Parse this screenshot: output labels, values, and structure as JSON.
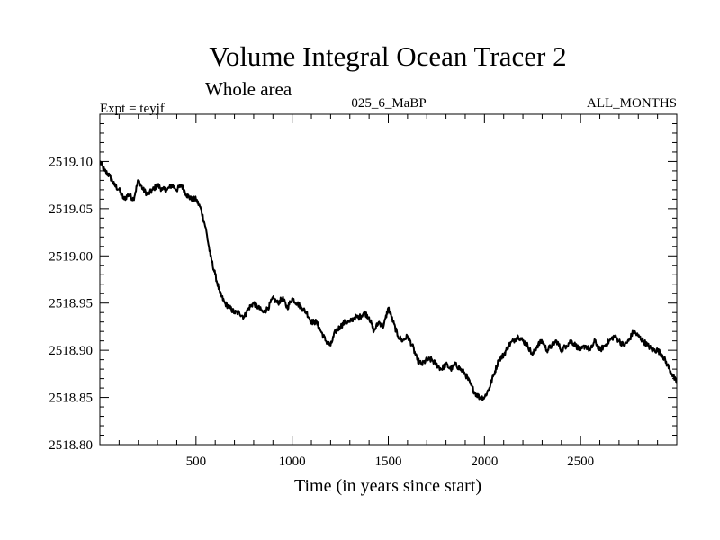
{
  "chart_data": {
    "type": "line",
    "title": "Volume Integral Ocean Tracer 2",
    "subtitle": "Whole area",
    "experiment": "Expt = teyjf",
    "run_label": "025_6_MaBP",
    "period_label": "ALL_MONTHS",
    "xlabel": "Time (in years since start)",
    "ylabel": "",
    "xlim": [
      0,
      3000
    ],
    "ylim": [
      2518.8,
      2519.15
    ],
    "x_ticks": [
      500,
      1000,
      1500,
      2000,
      2500
    ],
    "x_tick_labels": [
      "500",
      "1000",
      "1500",
      "2000",
      "2500"
    ],
    "y_ticks": [
      2518.8,
      2518.85,
      2518.9,
      2518.95,
      2519.0,
      2519.05,
      2519.1
    ],
    "y_tick_labels": [
      "2518.80",
      "2518.85",
      "2518.90",
      "2518.95",
      "2519.00",
      "2519.05",
      "2519.10"
    ],
    "series": [
      {
        "name": "Volume Integral Ocean Tracer 2",
        "x": [
          0,
          25,
          50,
          75,
          100,
          125,
          150,
          175,
          200,
          225,
          250,
          275,
          300,
          325,
          350,
          375,
          400,
          425,
          450,
          475,
          500,
          525,
          550,
          575,
          600,
          625,
          650,
          675,
          700,
          725,
          750,
          775,
          800,
          825,
          850,
          875,
          900,
          925,
          950,
          975,
          1000,
          1025,
          1050,
          1075,
          1100,
          1125,
          1150,
          1175,
          1200,
          1225,
          1250,
          1275,
          1300,
          1325,
          1350,
          1375,
          1400,
          1425,
          1450,
          1475,
          1500,
          1525,
          1550,
          1575,
          1600,
          1625,
          1650,
          1675,
          1700,
          1725,
          1750,
          1775,
          1800,
          1825,
          1850,
          1875,
          1900,
          1925,
          1950,
          1975,
          2000,
          2025,
          2050,
          2075,
          2100,
          2125,
          2150,
          2175,
          2200,
          2225,
          2250,
          2275,
          2300,
          2325,
          2350,
          2375,
          2400,
          2425,
          2450,
          2475,
          2500,
          2525,
          2550,
          2575,
          2600,
          2625,
          2650,
          2675,
          2700,
          2725,
          2750,
          2775,
          2800,
          2825,
          2850,
          2875,
          2900,
          2925,
          2950,
          2975,
          3000
        ],
        "values": [
          2519.1,
          2519.09,
          2519.085,
          2519.075,
          2519.07,
          2519.06,
          2519.065,
          2519.06,
          2519.08,
          2519.07,
          2519.065,
          2519.07,
          2519.075,
          2519.07,
          2519.07,
          2519.075,
          2519.07,
          2519.075,
          2519.065,
          2519.06,
          2519.06,
          2519.05,
          2519.03,
          2519.0,
          2518.98,
          2518.96,
          2518.95,
          2518.945,
          2518.94,
          2518.94,
          2518.935,
          2518.945,
          2518.95,
          2518.945,
          2518.94,
          2518.945,
          2518.955,
          2518.95,
          2518.955,
          2518.945,
          2518.955,
          2518.95,
          2518.945,
          2518.94,
          2518.93,
          2518.93,
          2518.92,
          2518.91,
          2518.905,
          2518.92,
          2518.925,
          2518.93,
          2518.93,
          2518.935,
          2518.935,
          2518.94,
          2518.935,
          2518.92,
          2518.93,
          2518.925,
          2518.945,
          2518.93,
          2518.915,
          2518.91,
          2518.915,
          2518.905,
          2518.89,
          2518.885,
          2518.89,
          2518.89,
          2518.885,
          2518.88,
          2518.885,
          2518.88,
          2518.885,
          2518.88,
          2518.875,
          2518.865,
          2518.855,
          2518.85,
          2518.85,
          2518.86,
          2518.875,
          2518.89,
          2518.895,
          2518.905,
          2518.91,
          2518.915,
          2518.91,
          2518.905,
          2518.895,
          2518.905,
          2518.91,
          2518.9,
          2518.905,
          2518.91,
          2518.9,
          2518.905,
          2518.91,
          2518.905,
          2518.9,
          2518.905,
          2518.9,
          2518.91,
          2518.9,
          2518.905,
          2518.91,
          2518.915,
          2518.91,
          2518.905,
          2518.91,
          2518.92,
          2518.915,
          2518.91,
          2518.905,
          2518.9,
          2518.9,
          2518.895,
          2518.885,
          2518.875,
          2518.865
        ]
      }
    ],
    "grid": false,
    "legend": "none",
    "line_color": "#000000"
  }
}
